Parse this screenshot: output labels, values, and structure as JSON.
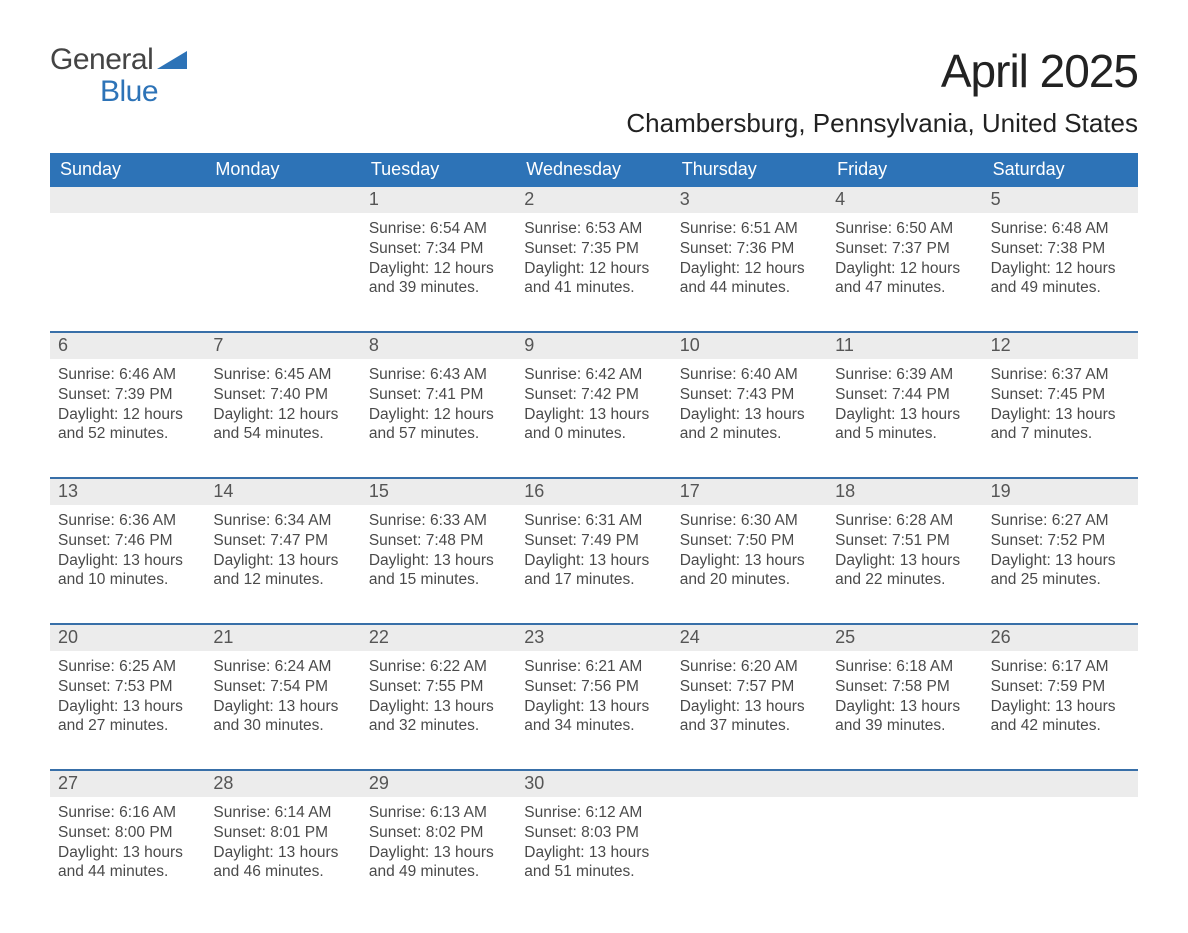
{
  "brand": {
    "top": "General",
    "bottom": "Blue"
  },
  "title": "April 2025",
  "location": "Chambersburg, Pennsylvania, United States",
  "colors": {
    "header_bg": "#2d73b7",
    "header_text": "#ffffff",
    "row_grey": "#ececec",
    "week_border": "#386fa8",
    "brand_blue": "#2d73b7"
  },
  "days_of_week": [
    "Sunday",
    "Monday",
    "Tuesday",
    "Wednesday",
    "Thursday",
    "Friday",
    "Saturday"
  ],
  "weeks": [
    [
      {
        "n": "",
        "l1": "",
        "l2": "",
        "l3": "",
        "l4": ""
      },
      {
        "n": "",
        "l1": "",
        "l2": "",
        "l3": "",
        "l4": ""
      },
      {
        "n": "1",
        "l1": "Sunrise: 6:54 AM",
        "l2": "Sunset: 7:34 PM",
        "l3": "Daylight: 12 hours",
        "l4": "and 39 minutes."
      },
      {
        "n": "2",
        "l1": "Sunrise: 6:53 AM",
        "l2": "Sunset: 7:35 PM",
        "l3": "Daylight: 12 hours",
        "l4": "and 41 minutes."
      },
      {
        "n": "3",
        "l1": "Sunrise: 6:51 AM",
        "l2": "Sunset: 7:36 PM",
        "l3": "Daylight: 12 hours",
        "l4": "and 44 minutes."
      },
      {
        "n": "4",
        "l1": "Sunrise: 6:50 AM",
        "l2": "Sunset: 7:37 PM",
        "l3": "Daylight: 12 hours",
        "l4": "and 47 minutes."
      },
      {
        "n": "5",
        "l1": "Sunrise: 6:48 AM",
        "l2": "Sunset: 7:38 PM",
        "l3": "Daylight: 12 hours",
        "l4": "and 49 minutes."
      }
    ],
    [
      {
        "n": "6",
        "l1": "Sunrise: 6:46 AM",
        "l2": "Sunset: 7:39 PM",
        "l3": "Daylight: 12 hours",
        "l4": "and 52 minutes."
      },
      {
        "n": "7",
        "l1": "Sunrise: 6:45 AM",
        "l2": "Sunset: 7:40 PM",
        "l3": "Daylight: 12 hours",
        "l4": "and 54 minutes."
      },
      {
        "n": "8",
        "l1": "Sunrise: 6:43 AM",
        "l2": "Sunset: 7:41 PM",
        "l3": "Daylight: 12 hours",
        "l4": "and 57 minutes."
      },
      {
        "n": "9",
        "l1": "Sunrise: 6:42 AM",
        "l2": "Sunset: 7:42 PM",
        "l3": "Daylight: 13 hours",
        "l4": "and 0 minutes."
      },
      {
        "n": "10",
        "l1": "Sunrise: 6:40 AM",
        "l2": "Sunset: 7:43 PM",
        "l3": "Daylight: 13 hours",
        "l4": "and 2 minutes."
      },
      {
        "n": "11",
        "l1": "Sunrise: 6:39 AM",
        "l2": "Sunset: 7:44 PM",
        "l3": "Daylight: 13 hours",
        "l4": "and 5 minutes."
      },
      {
        "n": "12",
        "l1": "Sunrise: 6:37 AM",
        "l2": "Sunset: 7:45 PM",
        "l3": "Daylight: 13 hours",
        "l4": "and 7 minutes."
      }
    ],
    [
      {
        "n": "13",
        "l1": "Sunrise: 6:36 AM",
        "l2": "Sunset: 7:46 PM",
        "l3": "Daylight: 13 hours",
        "l4": "and 10 minutes."
      },
      {
        "n": "14",
        "l1": "Sunrise: 6:34 AM",
        "l2": "Sunset: 7:47 PM",
        "l3": "Daylight: 13 hours",
        "l4": "and 12 minutes."
      },
      {
        "n": "15",
        "l1": "Sunrise: 6:33 AM",
        "l2": "Sunset: 7:48 PM",
        "l3": "Daylight: 13 hours",
        "l4": "and 15 minutes."
      },
      {
        "n": "16",
        "l1": "Sunrise: 6:31 AM",
        "l2": "Sunset: 7:49 PM",
        "l3": "Daylight: 13 hours",
        "l4": "and 17 minutes."
      },
      {
        "n": "17",
        "l1": "Sunrise: 6:30 AM",
        "l2": "Sunset: 7:50 PM",
        "l3": "Daylight: 13 hours",
        "l4": "and 20 minutes."
      },
      {
        "n": "18",
        "l1": "Sunrise: 6:28 AM",
        "l2": "Sunset: 7:51 PM",
        "l3": "Daylight: 13 hours",
        "l4": "and 22 minutes."
      },
      {
        "n": "19",
        "l1": "Sunrise: 6:27 AM",
        "l2": "Sunset: 7:52 PM",
        "l3": "Daylight: 13 hours",
        "l4": "and 25 minutes."
      }
    ],
    [
      {
        "n": "20",
        "l1": "Sunrise: 6:25 AM",
        "l2": "Sunset: 7:53 PM",
        "l3": "Daylight: 13 hours",
        "l4": "and 27 minutes."
      },
      {
        "n": "21",
        "l1": "Sunrise: 6:24 AM",
        "l2": "Sunset: 7:54 PM",
        "l3": "Daylight: 13 hours",
        "l4": "and 30 minutes."
      },
      {
        "n": "22",
        "l1": "Sunrise: 6:22 AM",
        "l2": "Sunset: 7:55 PM",
        "l3": "Daylight: 13 hours",
        "l4": "and 32 minutes."
      },
      {
        "n": "23",
        "l1": "Sunrise: 6:21 AM",
        "l2": "Sunset: 7:56 PM",
        "l3": "Daylight: 13 hours",
        "l4": "and 34 minutes."
      },
      {
        "n": "24",
        "l1": "Sunrise: 6:20 AM",
        "l2": "Sunset: 7:57 PM",
        "l3": "Daylight: 13 hours",
        "l4": "and 37 minutes."
      },
      {
        "n": "25",
        "l1": "Sunrise: 6:18 AM",
        "l2": "Sunset: 7:58 PM",
        "l3": "Daylight: 13 hours",
        "l4": "and 39 minutes."
      },
      {
        "n": "26",
        "l1": "Sunrise: 6:17 AM",
        "l2": "Sunset: 7:59 PM",
        "l3": "Daylight: 13 hours",
        "l4": "and 42 minutes."
      }
    ],
    [
      {
        "n": "27",
        "l1": "Sunrise: 6:16 AM",
        "l2": "Sunset: 8:00 PM",
        "l3": "Daylight: 13 hours",
        "l4": "and 44 minutes."
      },
      {
        "n": "28",
        "l1": "Sunrise: 6:14 AM",
        "l2": "Sunset: 8:01 PM",
        "l3": "Daylight: 13 hours",
        "l4": "and 46 minutes."
      },
      {
        "n": "29",
        "l1": "Sunrise: 6:13 AM",
        "l2": "Sunset: 8:02 PM",
        "l3": "Daylight: 13 hours",
        "l4": "and 49 minutes."
      },
      {
        "n": "30",
        "l1": "Sunrise: 6:12 AM",
        "l2": "Sunset: 8:03 PM",
        "l3": "Daylight: 13 hours",
        "l4": "and 51 minutes."
      },
      {
        "n": "",
        "l1": "",
        "l2": "",
        "l3": "",
        "l4": ""
      },
      {
        "n": "",
        "l1": "",
        "l2": "",
        "l3": "",
        "l4": ""
      },
      {
        "n": "",
        "l1": "",
        "l2": "",
        "l3": "",
        "l4": ""
      }
    ]
  ]
}
